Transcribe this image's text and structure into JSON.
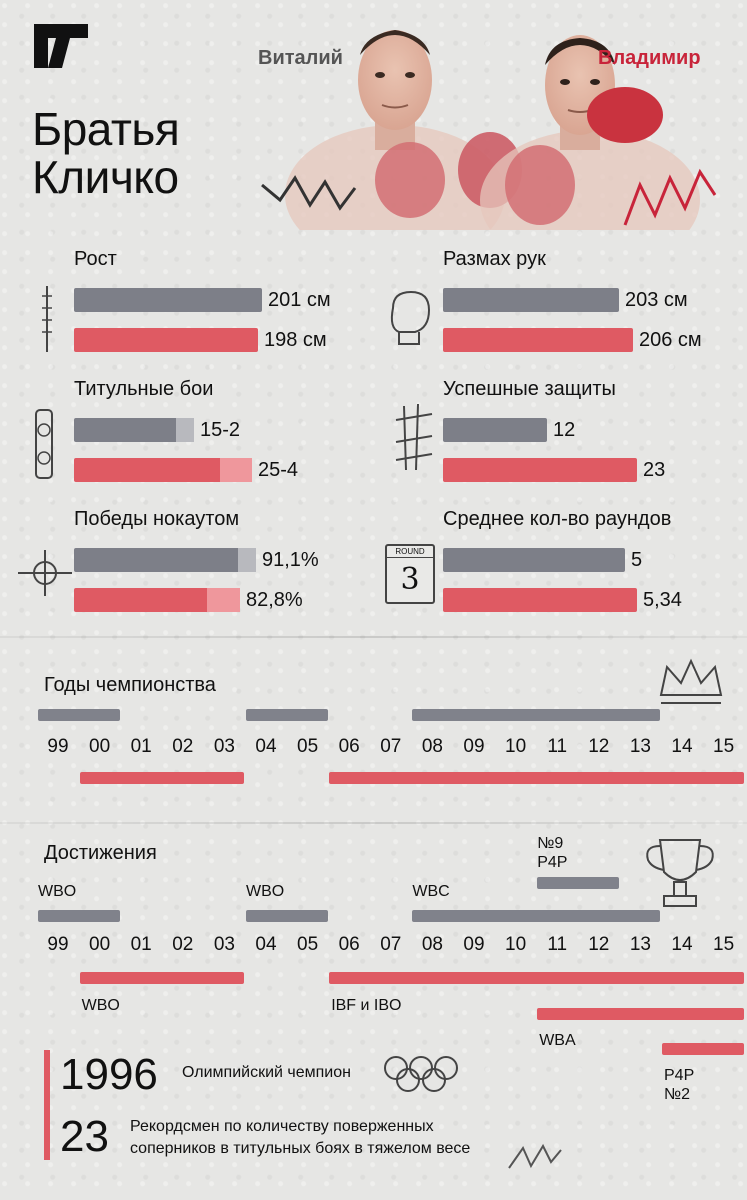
{
  "header": {
    "title_line1": "Братья",
    "title_line2": "Кличко",
    "name_vitaly": "Виталий",
    "name_wladimir": "Владимир"
  },
  "colors": {
    "vitaly": "#7d7f88",
    "wladimir": "#df5a63",
    "accent": "#c8243a"
  },
  "stats": {
    "height": {
      "label": "Рост",
      "vitaly": "201 см",
      "wladimir": "198 см",
      "vitaly_fill": 0.94,
      "wladimir_fill": 0.92,
      "icon": "ruler-icon"
    },
    "reach": {
      "label": "Размах рук",
      "vitaly": "203 см",
      "wladimir": "206 см",
      "vitaly_fill": 0.88,
      "wladimir_fill": 0.95,
      "icon": "boxing-glove-icon"
    },
    "title_fights": {
      "label": "Титульные бои",
      "vitaly": "15-2",
      "wladimir": "25-4",
      "vitaly_fill": 0.6,
      "wladimir_fill": 0.89,
      "icon": "belt-icon"
    },
    "defenses": {
      "label": "Успешные защиты",
      "vitaly": "12",
      "wladimir": "23",
      "vitaly_fill": 0.52,
      "wladimir_fill": 0.97,
      "icon": "tally-marks-icon"
    },
    "ko_wins": {
      "label": "Победы нокаутом",
      "vitaly": "91,1%",
      "wladimir": "82,8%",
      "vitaly_fill": 0.91,
      "wladimir_fill": 0.83,
      "icon": "crosshair-icon"
    },
    "avg_rounds": {
      "label": "Среднее кол-во раундов",
      "vitaly": "5",
      "wladimir": "5,34",
      "vitaly_fill": 0.91,
      "wladimir_fill": 0.97,
      "icon": "round-card-icon",
      "round_card_text": "ROUND",
      "round_card_number": "3"
    }
  },
  "championship": {
    "title": "Годы чемпионства",
    "years": [
      "99",
      "00",
      "01",
      "02",
      "03",
      "04",
      "05",
      "06",
      "07",
      "08",
      "09",
      "10",
      "11",
      "12",
      "13",
      "14",
      "15"
    ],
    "vitaly_periods": [
      [
        "99",
        "00"
      ],
      [
        "04",
        "05"
      ],
      [
        "08",
        "13"
      ]
    ],
    "wladimir_periods": [
      [
        "00",
        "03"
      ],
      [
        "06",
        "15"
      ]
    ]
  },
  "achievements": {
    "title": "Достижения",
    "years": [
      "99",
      "00",
      "01",
      "02",
      "03",
      "04",
      "05",
      "06",
      "07",
      "08",
      "09",
      "10",
      "11",
      "12",
      "13",
      "14",
      "15"
    ],
    "vitaly": [
      {
        "label": "WBO",
        "from": "99",
        "to": "00"
      },
      {
        "label": "WBO",
        "from": "04",
        "to": "05"
      },
      {
        "label": "WBC",
        "from": "08",
        "to": "13"
      },
      {
        "label": "№9\nP4P",
        "from": "11",
        "to": "12"
      }
    ],
    "wladimir": [
      {
        "label": "WBO",
        "from": "00",
        "to": "03"
      },
      {
        "label": "IBF и IBO",
        "from": "06",
        "to": "15"
      },
      {
        "label": "WBA",
        "from": "11",
        "to": "15"
      },
      {
        "label": "P4P\n№2",
        "from": "14",
        "to": "15"
      }
    ],
    "p4p_v_line1": "№9",
    "p4p_v_line2": "P4P",
    "p4p_w_line1": "P4P",
    "p4p_w_line2": "№2"
  },
  "footer": {
    "fact1_number": "1996",
    "fact1_text": "Олимпийский чемпион",
    "fact2_number": "23",
    "fact2_text_line1": "Рекордсмен по количеству поверженных",
    "fact2_text_line2": "соперников в титульных боях в тяжелом весе"
  }
}
